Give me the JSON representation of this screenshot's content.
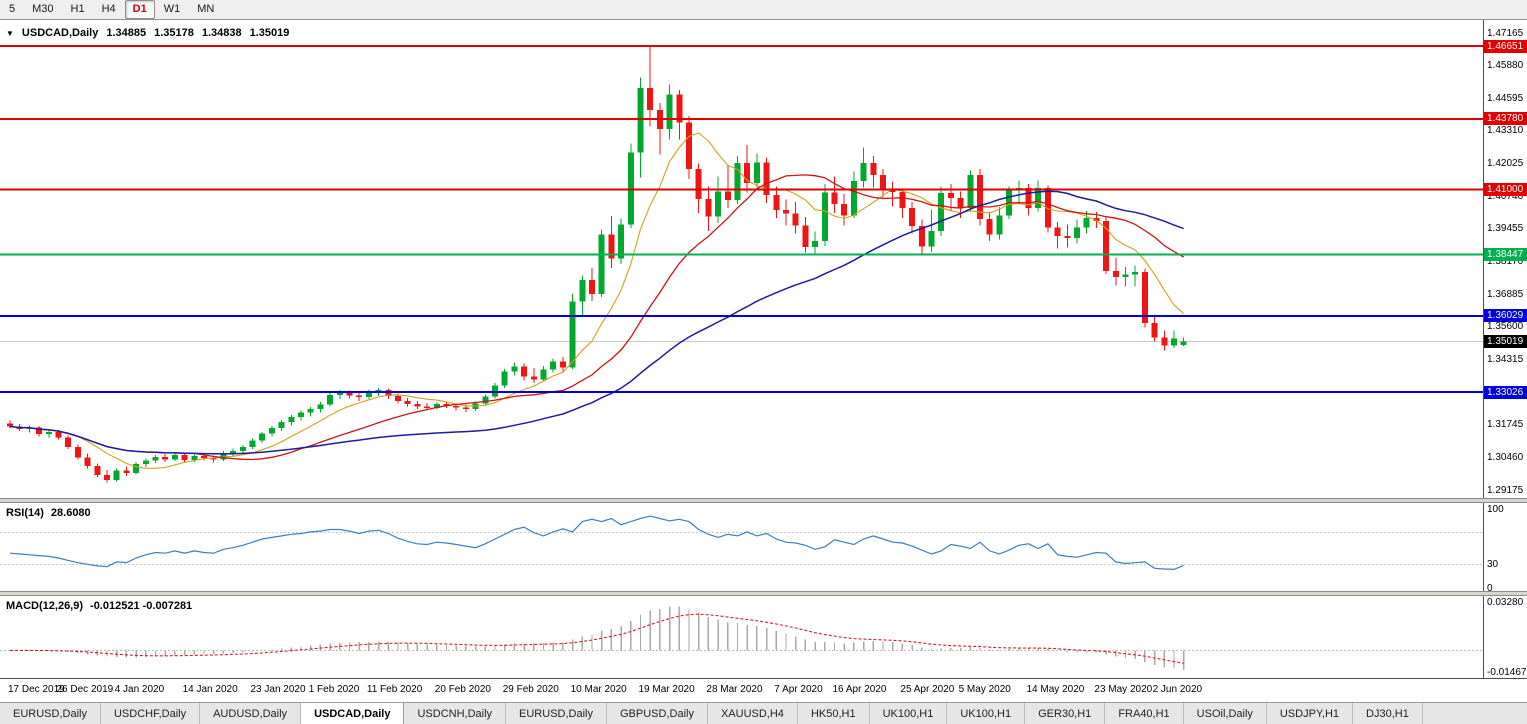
{
  "toolbar": {
    "timeframes": [
      "5",
      "M30",
      "H1",
      "H4",
      "D1",
      "W1",
      "MN"
    ],
    "active": "D1"
  },
  "chart_header": {
    "collapse_icon": "▼",
    "symbol": "USDCAD,Daily",
    "open": "1.34885",
    "high": "1.35178",
    "low": "1.34838",
    "close": "1.35019"
  },
  "rsi_header": {
    "name": "RSI(14)",
    "value": "28.6080"
  },
  "macd_header": {
    "name": "MACD(12,26,9)",
    "value": "-0.012521 -0.007281"
  },
  "tabs": {
    "active_index": 3,
    "items": [
      "EURUSD,Daily",
      "USDCHF,Daily",
      "AUDUSD,Daily",
      "USDCAD,Daily",
      "USDCNH,Daily",
      "EURUSD,Daily",
      "GBPUSD,Daily",
      "XAUUSD,H4",
      "HK50,H1",
      "UK100,H1",
      "UK100,H1",
      "GER30,H1",
      "FRA40,H1",
      "USOil,Daily",
      "USDJPY,H1",
      "DJ30,H1"
    ]
  },
  "chart_data": {
    "type": "candlestick",
    "symbol": "USDCAD",
    "timeframe": "Daily",
    "colors": {
      "bull": "#00a82d",
      "bear": "#f01414"
    },
    "price_axis": {
      "max": 1.47165,
      "min": 1.29175,
      "labels": [
        "1.47165",
        "1.45880",
        "1.44595",
        "1.43310",
        "1.42025",
        "1.40740",
        "1.39455",
        "1.38170",
        "1.36885",
        "1.35600",
        "1.34315",
        "1.33030",
        "1.31745",
        "1.30460",
        "1.29175"
      ]
    },
    "horizontal_lines": [
      {
        "price": 1.46651,
        "label": "1.46651",
        "color": "#e00000"
      },
      {
        "price": 1.4378,
        "label": "1.43780",
        "color": "#e00000"
      },
      {
        "price": 1.41,
        "label": "1.41000",
        "color": "#e00000"
      },
      {
        "price": 1.38447,
        "label": "1.38447",
        "color": "#00b050"
      },
      {
        "price": 1.36029,
        "label": "1.36029",
        "color": "#0000d8"
      },
      {
        "price": 1.33026,
        "label": "1.33026",
        "color": "#0000d8"
      }
    ],
    "current_price": {
      "price": 1.35019,
      "label": "1.35019",
      "color": "#000000"
    },
    "moving_averages": [
      {
        "period": 8,
        "color": "#d4a017",
        "width": 1.1
      },
      {
        "period": 20,
        "color": "#cc1414",
        "width": 1.3
      },
      {
        "period": 45,
        "color": "#1c1c9e",
        "width": 1.5
      }
    ],
    "candles": [
      [
        1.318,
        1.3192,
        1.316,
        1.3168
      ],
      [
        1.3168,
        1.3178,
        1.315,
        1.3158
      ],
      [
        1.3158,
        1.3172,
        1.3144,
        1.3163
      ],
      [
        1.3163,
        1.3169,
        1.3128,
        1.3138
      ],
      [
        1.3138,
        1.3152,
        1.3124,
        1.3145
      ],
      [
        1.3145,
        1.3153,
        1.3116,
        1.3124
      ],
      [
        1.3124,
        1.3132,
        1.3078,
        1.3086
      ],
      [
        1.3086,
        1.3096,
        1.3038,
        1.3046
      ],
      [
        1.3046,
        1.3062,
        1.3002,
        1.3012
      ],
      [
        1.3012,
        1.3022,
        1.2968,
        1.2976
      ],
      [
        1.2976,
        1.2996,
        1.2948,
        1.2956
      ],
      [
        1.2956,
        1.3002,
        1.295,
        1.2994
      ],
      [
        1.2994,
        1.301,
        1.2972,
        1.2984
      ],
      [
        1.2984,
        1.3028,
        1.2978,
        1.302
      ],
      [
        1.302,
        1.3042,
        1.3008,
        1.3034
      ],
      [
        1.3034,
        1.3056,
        1.3024,
        1.3048
      ],
      [
        1.3048,
        1.306,
        1.3028,
        1.3038
      ],
      [
        1.3038,
        1.3064,
        1.3032,
        1.3056
      ],
      [
        1.3056,
        1.3066,
        1.3026,
        1.3036
      ],
      [
        1.3036,
        1.3058,
        1.3028,
        1.3052
      ],
      [
        1.3052,
        1.3062,
        1.3034,
        1.3044
      ],
      [
        1.3044,
        1.3054,
        1.3026,
        1.3038
      ],
      [
        1.3038,
        1.3072,
        1.3032,
        1.3064
      ],
      [
        1.3064,
        1.308,
        1.3052,
        1.3072
      ],
      [
        1.3072,
        1.3094,
        1.3062,
        1.3086
      ],
      [
        1.3086,
        1.312,
        1.3078,
        1.3112
      ],
      [
        1.3112,
        1.3146,
        1.3102,
        1.314
      ],
      [
        1.314,
        1.317,
        1.3128,
        1.3162
      ],
      [
        1.3162,
        1.3194,
        1.315,
        1.3186
      ],
      [
        1.3186,
        1.3212,
        1.3172,
        1.3204
      ],
      [
        1.3204,
        1.323,
        1.3192,
        1.3222
      ],
      [
        1.3222,
        1.3244,
        1.3206,
        1.3236
      ],
      [
        1.3236,
        1.3264,
        1.3222,
        1.3254
      ],
      [
        1.3254,
        1.33,
        1.3246,
        1.3292
      ],
      [
        1.3292,
        1.3312,
        1.3276,
        1.33
      ],
      [
        1.33,
        1.331,
        1.3278,
        1.329
      ],
      [
        1.329,
        1.3304,
        1.3268,
        1.3284
      ],
      [
        1.3284,
        1.3314,
        1.3276,
        1.3304
      ],
      [
        1.3304,
        1.332,
        1.3288,
        1.3312
      ],
      [
        1.3312,
        1.3318,
        1.3276,
        1.3288
      ],
      [
        1.3288,
        1.3298,
        1.3258,
        1.3268
      ],
      [
        1.3268,
        1.328,
        1.3246,
        1.3256
      ],
      [
        1.3256,
        1.3268,
        1.3236,
        1.3246
      ],
      [
        1.3246,
        1.326,
        1.3232,
        1.324
      ],
      [
        1.324,
        1.3264,
        1.3234,
        1.3256
      ],
      [
        1.3256,
        1.3266,
        1.324,
        1.3248
      ],
      [
        1.3248,
        1.3258,
        1.323,
        1.3242
      ],
      [
        1.3242,
        1.3254,
        1.3224,
        1.3236
      ],
      [
        1.3236,
        1.3266,
        1.3228,
        1.3258
      ],
      [
        1.3258,
        1.3294,
        1.325,
        1.3286
      ],
      [
        1.3286,
        1.3338,
        1.3278,
        1.3328
      ],
      [
        1.3328,
        1.3394,
        1.332,
        1.3384
      ],
      [
        1.3384,
        1.342,
        1.3368,
        1.3404
      ],
      [
        1.3404,
        1.3416,
        1.3348,
        1.3364
      ],
      [
        1.3364,
        1.3398,
        1.3338,
        1.3352
      ],
      [
        1.3352,
        1.3406,
        1.3344,
        1.3392
      ],
      [
        1.3392,
        1.3436,
        1.338,
        1.3424
      ],
      [
        1.3424,
        1.3442,
        1.3384,
        1.34
      ],
      [
        1.34,
        1.3692,
        1.3394,
        1.366
      ],
      [
        1.366,
        1.3762,
        1.3598,
        1.3744
      ],
      [
        1.3744,
        1.3792,
        1.3662,
        1.369
      ],
      [
        1.369,
        1.3942,
        1.3678,
        1.3924
      ],
      [
        1.3924,
        1.3996,
        1.3792,
        1.3828
      ],
      [
        1.3828,
        1.3986,
        1.3808,
        1.3962
      ],
      [
        1.3962,
        1.4282,
        1.3948,
        1.4246
      ],
      [
        1.4246,
        1.4542,
        1.4148,
        1.45
      ],
      [
        1.45,
        1.4668,
        1.4348,
        1.4414
      ],
      [
        1.4414,
        1.444,
        1.4238,
        1.4338
      ],
      [
        1.4338,
        1.4514,
        1.4298,
        1.4474
      ],
      [
        1.4474,
        1.4492,
        1.4298,
        1.4364
      ],
      [
        1.4364,
        1.439,
        1.4142,
        1.4182
      ],
      [
        1.4182,
        1.4202,
        1.4008,
        1.4064
      ],
      [
        1.4064,
        1.4112,
        1.3938,
        1.3994
      ],
      [
        1.3994,
        1.4152,
        1.3968,
        1.4092
      ],
      [
        1.4092,
        1.4196,
        1.4028,
        1.406
      ],
      [
        1.406,
        1.4232,
        1.4044,
        1.4204
      ],
      [
        1.4204,
        1.4276,
        1.4088,
        1.4126
      ],
      [
        1.4126,
        1.4242,
        1.4108,
        1.4206
      ],
      [
        1.4206,
        1.4226,
        1.4048,
        1.4078
      ],
      [
        1.4078,
        1.4112,
        1.3988,
        1.402
      ],
      [
        1.402,
        1.4062,
        1.3958,
        1.4006
      ],
      [
        1.4006,
        1.4052,
        1.3928,
        1.3958
      ],
      [
        1.3958,
        1.3992,
        1.3852,
        1.3874
      ],
      [
        1.3874,
        1.3936,
        1.3848,
        1.3898
      ],
      [
        1.3898,
        1.4122,
        1.3878,
        1.4088
      ],
      [
        1.4088,
        1.4152,
        1.4008,
        1.4044
      ],
      [
        1.4044,
        1.4082,
        1.3958,
        1.3998
      ],
      [
        1.3998,
        1.4172,
        1.3988,
        1.4134
      ],
      [
        1.4134,
        1.4266,
        1.4108,
        1.4204
      ],
      [
        1.4204,
        1.4232,
        1.4108,
        1.4158
      ],
      [
        1.4158,
        1.4182,
        1.4068,
        1.4096
      ],
      [
        1.4096,
        1.4132,
        1.4034,
        1.409
      ],
      [
        1.409,
        1.4102,
        1.3988,
        1.4028
      ],
      [
        1.4028,
        1.4052,
        1.3928,
        1.3956
      ],
      [
        1.3956,
        1.3982,
        1.3848,
        1.3876
      ],
      [
        1.3876,
        1.4022,
        1.3854,
        1.3938
      ],
      [
        1.3938,
        1.4112,
        1.3918,
        1.4086
      ],
      [
        1.4086,
        1.4122,
        1.4018,
        1.4066
      ],
      [
        1.4066,
        1.4092,
        1.3988,
        1.4028
      ],
      [
        1.4028,
        1.4176,
        1.4012,
        1.4158
      ],
      [
        1.4158,
        1.4182,
        1.3958,
        1.3984
      ],
      [
        1.3984,
        1.4012,
        1.3898,
        1.3924
      ],
      [
        1.3924,
        1.4032,
        1.3904,
        1.3998
      ],
      [
        1.3998,
        1.4112,
        1.3984,
        1.4096
      ],
      [
        1.4096,
        1.4136,
        1.4048,
        1.4106
      ],
      [
        1.4106,
        1.4122,
        1.3998,
        1.4028
      ],
      [
        1.4028,
        1.4136,
        1.4014,
        1.4106
      ],
      [
        1.4106,
        1.4116,
        1.3932,
        1.395
      ],
      [
        1.395,
        1.3972,
        1.3868,
        1.3918
      ],
      [
        1.3918,
        1.3962,
        1.3872,
        1.391
      ],
      [
        1.391,
        1.3982,
        1.3888,
        1.395
      ],
      [
        1.395,
        1.4016,
        1.3928,
        1.3988
      ],
      [
        1.3988,
        1.4012,
        1.3948,
        1.3976
      ],
      [
        1.3976,
        1.399,
        1.3768,
        1.378
      ],
      [
        1.378,
        1.3832,
        1.3722,
        1.3756
      ],
      [
        1.3756,
        1.3796,
        1.3718,
        1.3766
      ],
      [
        1.3766,
        1.3802,
        1.3718,
        1.3776
      ],
      [
        1.3776,
        1.379,
        1.3558,
        1.3574
      ],
      [
        1.3574,
        1.36,
        1.3502,
        1.3518
      ],
      [
        1.3518,
        1.3546,
        1.3466,
        1.3486
      ],
      [
        1.3486,
        1.3546,
        1.3476,
        1.3514
      ],
      [
        1.34885,
        1.35178,
        1.34838,
        1.35019
      ]
    ],
    "rsi": {
      "period": 14,
      "current": 28.608,
      "color": "#3c7ebf",
      "levels": [
        70,
        30
      ],
      "axis_labels": [
        "100",
        "30",
        "0"
      ],
      "values": [
        44,
        43,
        42,
        41,
        40,
        38,
        35,
        32,
        30,
        28,
        27,
        33,
        32,
        38,
        42,
        45,
        44,
        47,
        44,
        47,
        45,
        44,
        49,
        51,
        54,
        58,
        62,
        64,
        66,
        68,
        69,
        71,
        72,
        74,
        74,
        72,
        69,
        72,
        73,
        69,
        63,
        59,
        56,
        55,
        58,
        57,
        55,
        53,
        51,
        56,
        62,
        68,
        74,
        77,
        70,
        66,
        71,
        75,
        71,
        84,
        87,
        84,
        88,
        80,
        84,
        88,
        91,
        88,
        85,
        87,
        84,
        74,
        68,
        64,
        68,
        66,
        71,
        66,
        69,
        62,
        58,
        57,
        54,
        49,
        52,
        61,
        58,
        55,
        62,
        66,
        62,
        58,
        57,
        53,
        48,
        43,
        47,
        55,
        53,
        50,
        58,
        47,
        43,
        48,
        54,
        56,
        50,
        56,
        42,
        40,
        39,
        42,
        45,
        44,
        33,
        31,
        32,
        33,
        25,
        24,
        23.5,
        28.6
      ]
    },
    "macd": {
      "fast": 12,
      "slow": 26,
      "signal": 9,
      "current": "-0.012521",
      "signal_current": "-0.007281",
      "axis_max": 0.0328,
      "axis_min": -0.01467,
      "axis_labels": [
        "0.03280",
        "-0.01467"
      ],
      "hist_color": "#a8a8a8",
      "signal_color": "#d02020"
    },
    "dates": {
      "labels": [
        "17 Dec 2019",
        "26 Dec 2019",
        "4 Jan 2020",
        "14 Jan 2020",
        "23 Jan 2020",
        "1 Feb 2020",
        "11 Feb 2020",
        "20 Feb 2020",
        "29 Feb 2020",
        "10 Mar 2020",
        "19 Mar 2020",
        "28 Mar 2020",
        "7 Apr 2020",
        "16 Apr 2020",
        "25 Apr 2020",
        "5 May 2020",
        "14 May 2020",
        "23 May 2020",
        "2 Jun 2020"
      ],
      "indices": [
        0,
        5,
        11,
        18,
        25,
        31,
        37,
        44,
        51,
        58,
        65,
        72,
        79,
        85,
        92,
        98,
        105,
        112,
        118
      ]
    }
  }
}
